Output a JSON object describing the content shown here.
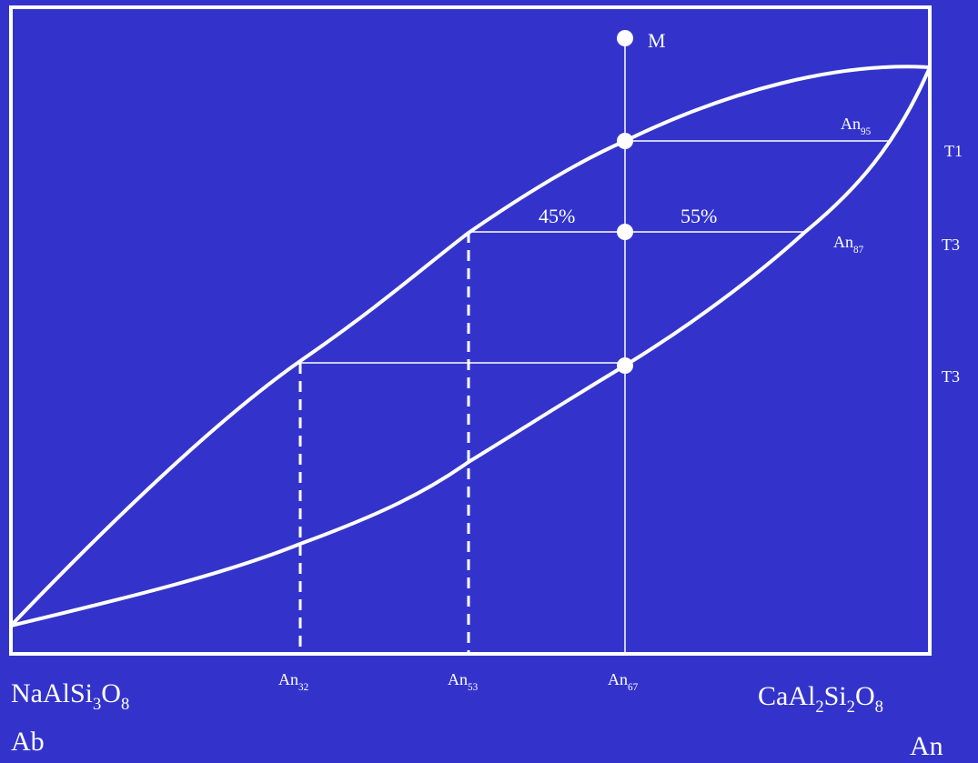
{
  "colors": {
    "background": "#3333cc",
    "foreground": "#ffffff"
  },
  "diagram": {
    "point_m_label": "M",
    "temperatures": {
      "t1": "T1",
      "t3_upper": "T3",
      "t3_lower": "T3"
    },
    "lever_percent_left": "45%",
    "lever_percent_right": "55%",
    "solid_an95": {
      "base": "An",
      "sub": "95"
    },
    "solid_an87": {
      "base": "An",
      "sub": "87"
    },
    "axis_ticks": [
      {
        "base": "An",
        "sub": "32"
      },
      {
        "base": "An",
        "sub": "53"
      },
      {
        "base": "An",
        "sub": "67"
      }
    ],
    "left_endmember": {
      "formula_parts": [
        "NaAlSi",
        "3",
        "O",
        "8"
      ],
      "name": "Ab"
    },
    "right_endmember": {
      "formula_parts": [
        "CaAl",
        "2",
        "Si",
        "2",
        "O",
        "8"
      ],
      "name": "An"
    }
  }
}
